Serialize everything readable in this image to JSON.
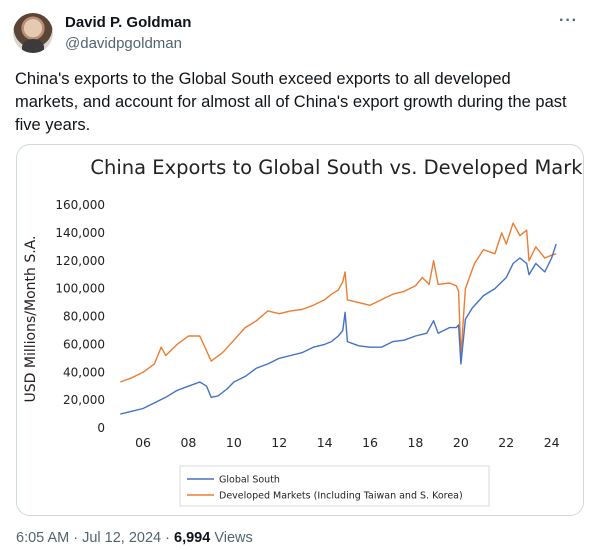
{
  "author": {
    "name": "David P. Goldman",
    "handle": "@davidpgoldman"
  },
  "more_icon": "ellipsis-icon",
  "tweet": {
    "text": "China's exports to the Global South exceed exports to all developed markets, and account for almost all of China's export growth during the past five years."
  },
  "meta": {
    "time": "6:05 AM",
    "date": "Jul 12, 2024",
    "separator1": " · ",
    "separator2": " · ",
    "views_count": "6,994",
    "views_label": " Views"
  },
  "colors": {
    "global_south": "#4472c4",
    "developed": "#ed7d31"
  },
  "chart_data": {
    "type": "line",
    "title": "China Exports to Global South vs. Developed Markets",
    "ylabel": "USD Millions/Month S.A.",
    "xlabel": "",
    "ylim": [
      0,
      160000
    ],
    "xlim": [
      2004.5,
      2024.5
    ],
    "yticks": [
      "0",
      "20,000",
      "40,000",
      "60,000",
      "80,000",
      "100,000",
      "120,000",
      "140,000",
      "160,000"
    ],
    "ytick_values": [
      0,
      20000,
      40000,
      60000,
      80000,
      100000,
      120000,
      140000,
      160000
    ],
    "xticks": [
      "06",
      "08",
      "10",
      "12",
      "14",
      "16",
      "18",
      "20",
      "22",
      "24"
    ],
    "xtick_values": [
      2006,
      2008,
      2010,
      2012,
      2014,
      2016,
      2018,
      2020,
      2022,
      2024
    ],
    "grid": false,
    "legend_position": "bottom",
    "series": [
      {
        "name": "Global South",
        "x": [
          2005.0,
          2005.5,
          2006.0,
          2006.5,
          2007.0,
          2007.5,
          2008.0,
          2008.5,
          2008.8,
          2009.0,
          2009.3,
          2009.7,
          2010.0,
          2010.5,
          2011.0,
          2011.5,
          2012.0,
          2012.5,
          2013.0,
          2013.5,
          2014.0,
          2014.3,
          2014.6,
          2014.8,
          2014.9,
          2015.0,
          2015.5,
          2016.0,
          2016.5,
          2017.0,
          2017.5,
          2018.0,
          2018.5,
          2018.8,
          2019.0,
          2019.5,
          2019.8,
          2019.9,
          2020.0,
          2020.2,
          2020.5,
          2021.0,
          2021.5,
          2022.0,
          2022.3,
          2022.6,
          2022.9,
          2023.0,
          2023.3,
          2023.7,
          2024.0,
          2024.2
        ],
        "y": [
          10000,
          12000,
          14000,
          18000,
          22000,
          27000,
          30000,
          33000,
          30000,
          22000,
          23000,
          28000,
          33000,
          37000,
          43000,
          46000,
          50000,
          52000,
          54000,
          58000,
          60000,
          62000,
          66000,
          70000,
          83000,
          62000,
          59000,
          58000,
          58000,
          62000,
          63000,
          66000,
          68000,
          77000,
          68000,
          72000,
          72000,
          74000,
          46000,
          78000,
          86000,
          95000,
          100000,
          108000,
          118000,
          122000,
          118000,
          110000,
          118000,
          112000,
          122000,
          132000
        ]
      },
      {
        "name": "Developed Markets (Including Taiwan and S. Korea)",
        "x": [
          2005.0,
          2005.5,
          2006.0,
          2006.5,
          2006.8,
          2007.0,
          2007.5,
          2008.0,
          2008.5,
          2009.0,
          2009.5,
          2010.0,
          2010.5,
          2011.0,
          2011.5,
          2012.0,
          2012.5,
          2013.0,
          2013.5,
          2014.0,
          2014.3,
          2014.6,
          2014.8,
          2014.9,
          2015.0,
          2015.5,
          2016.0,
          2016.5,
          2017.0,
          2017.5,
          2018.0,
          2018.3,
          2018.6,
          2018.8,
          2019.0,
          2019.5,
          2019.8,
          2019.9,
          2020.0,
          2020.2,
          2020.6,
          2021.0,
          2021.5,
          2021.8,
          2022.0,
          2022.3,
          2022.6,
          2022.9,
          2023.0,
          2023.3,
          2023.7,
          2024.0,
          2024.2
        ],
        "y": [
          33000,
          36000,
          40000,
          46000,
          58000,
          52000,
          60000,
          66000,
          66000,
          48000,
          54000,
          63000,
          72000,
          77000,
          84000,
          82000,
          84000,
          85000,
          88000,
          92000,
          96000,
          99000,
          105000,
          112000,
          92000,
          90000,
          88000,
          92000,
          96000,
          98000,
          102000,
          108000,
          103000,
          120000,
          103000,
          104000,
          102000,
          98000,
          52000,
          100000,
          118000,
          128000,
          125000,
          140000,
          132000,
          147000,
          138000,
          142000,
          120000,
          130000,
          122000,
          124000,
          125000
        ]
      }
    ]
  }
}
